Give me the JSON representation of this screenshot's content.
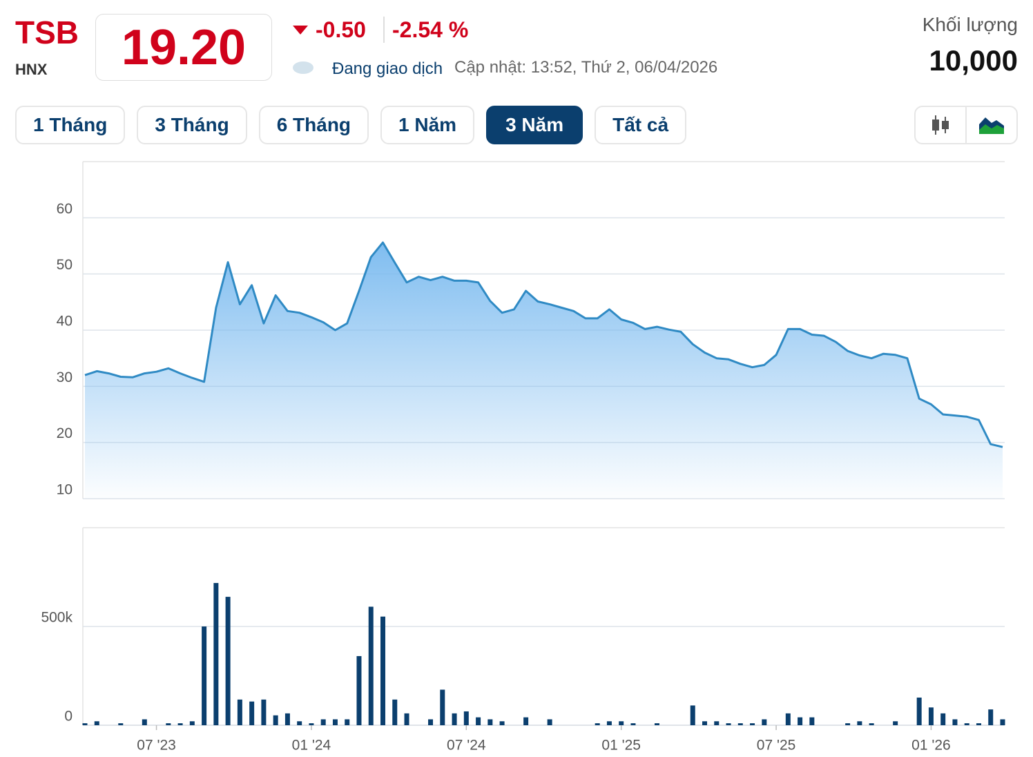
{
  "header": {
    "ticker": "TSB",
    "exchange": "HNX",
    "price": "19.20",
    "change": "-0.50",
    "change_pct": "-2.54 %",
    "status": "Đang giao dịch",
    "updated": "Cập nhật: 13:52, Thứ 2, 06/04/2026",
    "volume_label": "Khối lượng",
    "volume": "10,000"
  },
  "range_buttons": [
    {
      "label": "1 Tháng",
      "active": false
    },
    {
      "label": "3 Tháng",
      "active": false
    },
    {
      "label": "6 Tháng",
      "active": false
    },
    {
      "label": "1 Năm",
      "active": false
    },
    {
      "label": "3 Năm",
      "active": true
    },
    {
      "label": "Tất cả",
      "active": false
    }
  ],
  "chart_data": {
    "type": "stock",
    "categories": [
      null,
      null,
      null,
      null,
      null,
      null,
      "07 '23",
      null,
      null,
      null,
      null,
      null,
      null,
      null,
      null,
      null,
      null,
      null,
      null,
      "01 '24",
      null,
      null,
      null,
      null,
      null,
      null,
      null,
      null,
      null,
      null,
      null,
      null,
      "07 '24",
      null,
      null,
      null,
      null,
      null,
      null,
      null,
      null,
      null,
      null,
      null,
      null,
      "01 '25",
      null,
      null,
      null,
      null,
      null,
      null,
      null,
      null,
      null,
      null,
      null,
      null,
      "07 '25",
      null,
      null,
      null,
      null,
      null,
      null,
      null,
      null,
      null,
      null,
      null,
      null,
      "01 '26",
      null,
      null,
      null,
      null,
      null,
      null
    ],
    "series": [
      {
        "type": "area",
        "color": "#2f8ac4",
        "values": [
          32,
          32.7,
          32.3,
          31.7,
          31.6,
          32.3,
          32.6,
          33.2,
          32.3,
          31.5,
          30.8,
          44,
          52.1,
          44.6,
          48,
          41.2,
          46.2,
          43.4,
          43.1,
          42.3,
          41.4,
          40,
          41.2,
          47,
          53,
          55.6,
          52,
          48.5,
          49.5,
          48.9,
          49.5,
          48.8,
          48.8,
          48.5,
          45.2,
          43.1,
          43.7,
          47,
          45.1,
          44.6,
          44,
          43.4,
          42.1,
          42.1,
          43.7,
          41.9,
          41.3,
          40.2,
          40.6,
          40.1,
          39.7,
          37.5,
          36,
          35,
          34.8,
          34,
          33.4,
          33.8,
          35.6,
          40.2,
          40.2,
          39.2,
          39,
          37.9,
          36.3,
          35.5,
          35,
          35.8,
          35.6,
          35,
          27.8,
          26.8,
          25,
          24.8,
          24.6,
          24,
          19.7,
          19.2
        ]
      },
      {
        "type": "bar",
        "axis": "y2",
        "color": "#0b3f6e",
        "values": [
          10000,
          20000,
          0,
          10000,
          0,
          30000,
          0,
          10000,
          10000,
          20000,
          500000,
          720000,
          650000,
          130000,
          120000,
          130000,
          50000,
          60000,
          20000,
          10000,
          30000,
          30000,
          30000,
          350000,
          600000,
          550000,
          130000,
          60000,
          0,
          30000,
          180000,
          60000,
          70000,
          40000,
          30000,
          20000,
          0,
          40000,
          0,
          30000,
          0,
          0,
          0,
          10000,
          20000,
          20000,
          10000,
          0,
          10000,
          0,
          0,
          100000,
          20000,
          20000,
          10000,
          10000,
          10000,
          30000,
          0,
          60000,
          40000,
          40000,
          0,
          0,
          10000,
          20000,
          10000,
          0,
          20000,
          0,
          140000,
          90000,
          60000,
          30000,
          10000,
          10000,
          80000,
          30000
        ]
      }
    ],
    "ylim": [
      10,
      70
    ],
    "yticks": [
      10,
      20,
      30,
      40,
      50,
      60
    ],
    "y2lim": [
      0,
      1000000
    ],
    "y2ticks": [
      0,
      {
        "value": 500000,
        "label": "500k"
      }
    ],
    "grid": true
  }
}
